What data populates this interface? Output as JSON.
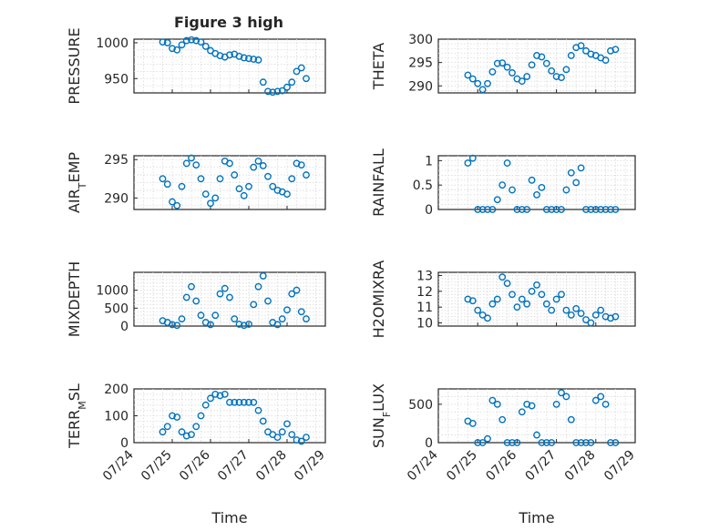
{
  "figure": {
    "title": "Figure 3 high"
  },
  "chart_data": [
    {
      "type": "scatter",
      "ylabel": "PRESSURE",
      "xlabel": "",
      "grid": true,
      "xlim": [
        "07/24",
        "07/29"
      ],
      "ylim": [
        930,
        1005
      ],
      "yticks": [
        950,
        1000
      ],
      "x": [
        "07/24 18:00",
        "07/24 21:00",
        "07/25 00:00",
        "07/25 03:00",
        "07/25 06:00",
        "07/25 09:00",
        "07/25 12:00",
        "07/25 15:00",
        "07/25 18:00",
        "07/25 21:00",
        "07/26 00:00",
        "07/26 03:00",
        "07/26 06:00",
        "07/26 09:00",
        "07/26 12:00",
        "07/26 15:00",
        "07/26 18:00",
        "07/26 21:00",
        "07/27 00:00",
        "07/27 03:00",
        "07/27 06:00",
        "07/27 09:00",
        "07/27 12:00",
        "07/27 15:00",
        "07/27 18:00",
        "07/27 21:00",
        "07/28 00:00",
        "07/28 03:00",
        "07/28 06:00",
        "07/28 09:00",
        "07/28 12:00"
      ],
      "y": [
        1001,
        1000,
        992,
        990,
        997,
        1003,
        1004,
        1003,
        1001,
        995,
        989,
        985,
        982,
        980,
        983,
        984,
        981,
        979,
        978,
        977,
        976,
        945,
        932,
        931,
        932,
        933,
        938,
        945,
        960,
        965,
        950
      ]
    },
    {
      "type": "scatter",
      "ylabel": "THETA",
      "xlabel": "",
      "grid": true,
      "xlim": [
        "07/24",
        "07/29"
      ],
      "ylim": [
        288.5,
        300
      ],
      "yticks": [
        290,
        295,
        300
      ],
      "x": [
        "07/24 18:00",
        "07/24 21:00",
        "07/25 00:00",
        "07/25 03:00",
        "07/25 06:00",
        "07/25 09:00",
        "07/25 12:00",
        "07/25 15:00",
        "07/25 18:00",
        "07/25 21:00",
        "07/26 00:00",
        "07/26 03:00",
        "07/26 06:00",
        "07/26 09:00",
        "07/26 12:00",
        "07/26 15:00",
        "07/26 18:00",
        "07/26 21:00",
        "07/27 00:00",
        "07/27 03:00",
        "07/27 06:00",
        "07/27 09:00",
        "07/27 12:00",
        "07/27 15:00",
        "07/27 18:00",
        "07/27 21:00",
        "07/28 00:00",
        "07/28 03:00",
        "07/28 06:00",
        "07/28 09:00",
        "07/28 12:00"
      ],
      "y": [
        292.3,
        291.5,
        290.5,
        289.2,
        290.5,
        293,
        294.8,
        294.9,
        294,
        292.8,
        291.5,
        291,
        292,
        294.5,
        296.5,
        296.2,
        294.8,
        293.2,
        292,
        291.8,
        293.5,
        296.5,
        298.2,
        298.6,
        297.5,
        296.8,
        296.5,
        296,
        295.5,
        297.5,
        297.8
      ]
    },
    {
      "type": "scatter",
      "ylabel": "AIR_TEMP",
      "xlabel": "",
      "grid": true,
      "xlim": [
        "07/24",
        "07/29"
      ],
      "ylim": [
        288.5,
        295.5
      ],
      "yticks": [
        290,
        295
      ],
      "x": [
        "07/24 18:00",
        "07/24 21:00",
        "07/25 00:00",
        "07/25 03:00",
        "07/25 06:00",
        "07/25 09:00",
        "07/25 12:00",
        "07/25 15:00",
        "07/25 18:00",
        "07/25 21:00",
        "07/26 00:00",
        "07/26 03:00",
        "07/26 06:00",
        "07/26 09:00",
        "07/26 12:00",
        "07/26 15:00",
        "07/26 18:00",
        "07/26 21:00",
        "07/27 00:00",
        "07/27 03:00",
        "07/27 06:00",
        "07/27 09:00",
        "07/27 12:00",
        "07/27 15:00",
        "07/27 18:00",
        "07/27 21:00",
        "07/28 00:00",
        "07/28 03:00",
        "07/28 06:00",
        "07/28 09:00",
        "07/28 12:00"
      ],
      "y": [
        292.5,
        291.8,
        289.5,
        289,
        291.5,
        294.5,
        295.2,
        294.3,
        292.5,
        290.5,
        289.3,
        290,
        292.5,
        294.8,
        294.5,
        293,
        291.2,
        290.3,
        291.5,
        294,
        294.8,
        294.2,
        292.8,
        291.5,
        291,
        290.8,
        290.5,
        292.5,
        294.5,
        294.3,
        293
      ]
    },
    {
      "type": "scatter",
      "ylabel": "RAINFALL",
      "xlabel": "",
      "grid": true,
      "xlim": [
        "07/24",
        "07/29"
      ],
      "ylim": [
        0,
        1.1
      ],
      "yticks": [
        0,
        0.5,
        1
      ],
      "x": [
        "07/24 18:00",
        "07/24 21:00",
        "07/25 00:00",
        "07/25 03:00",
        "07/25 06:00",
        "07/25 09:00",
        "07/25 12:00",
        "07/25 15:00",
        "07/25 18:00",
        "07/25 21:00",
        "07/26 00:00",
        "07/26 03:00",
        "07/26 06:00",
        "07/26 09:00",
        "07/26 12:00",
        "07/26 15:00",
        "07/26 18:00",
        "07/26 21:00",
        "07/27 00:00",
        "07/27 03:00",
        "07/27 06:00",
        "07/27 09:00",
        "07/27 12:00",
        "07/27 15:00",
        "07/27 18:00",
        "07/27 21:00",
        "07/28 00:00",
        "07/28 03:00",
        "07/28 06:00",
        "07/28 09:00",
        "07/28 12:00"
      ],
      "y": [
        0.95,
        1.05,
        0,
        0,
        0,
        0,
        0.2,
        0.5,
        0.95,
        0.4,
        0,
        0,
        0,
        0.6,
        0.3,
        0.45,
        0,
        0,
        0,
        0,
        0.4,
        0.75,
        0.55,
        0.85,
        0,
        0,
        0,
        0,
        0,
        0,
        0
      ]
    },
    {
      "type": "scatter",
      "ylabel": "MIXDEPTH",
      "xlabel": "",
      "grid": true,
      "xlim": [
        "07/24",
        "07/29"
      ],
      "ylim": [
        0,
        1500
      ],
      "yticks": [
        0,
        500,
        1000
      ],
      "x": [
        "07/24 18:00",
        "07/24 21:00",
        "07/25 00:00",
        "07/25 03:00",
        "07/25 06:00",
        "07/25 09:00",
        "07/25 12:00",
        "07/25 15:00",
        "07/25 18:00",
        "07/25 21:00",
        "07/26 00:00",
        "07/26 03:00",
        "07/26 06:00",
        "07/26 09:00",
        "07/26 12:00",
        "07/26 15:00",
        "07/26 18:00",
        "07/26 21:00",
        "07/27 00:00",
        "07/27 03:00",
        "07/27 06:00",
        "07/27 09:00",
        "07/27 12:00",
        "07/27 15:00",
        "07/27 18:00",
        "07/27 21:00",
        "07/28 00:00",
        "07/28 03:00",
        "07/28 06:00",
        "07/28 09:00",
        "07/28 12:00"
      ],
      "y": [
        150,
        100,
        40,
        20,
        200,
        800,
        1100,
        700,
        300,
        100,
        40,
        300,
        900,
        1050,
        800,
        200,
        50,
        20,
        50,
        600,
        1100,
        1400,
        700,
        100,
        40,
        200,
        450,
        900,
        1000,
        400,
        200
      ]
    },
    {
      "type": "scatter",
      "ylabel": "H2OMIXRA",
      "xlabel": "",
      "grid": true,
      "xlim": [
        "07/24",
        "07/29"
      ],
      "ylim": [
        9.8,
        13.2
      ],
      "yticks": [
        10,
        11,
        12,
        13
      ],
      "x": [
        "07/24 18:00",
        "07/24 21:00",
        "07/25 00:00",
        "07/25 03:00",
        "07/25 06:00",
        "07/25 09:00",
        "07/25 12:00",
        "07/25 15:00",
        "07/25 18:00",
        "07/25 21:00",
        "07/26 00:00",
        "07/26 03:00",
        "07/26 06:00",
        "07/26 09:00",
        "07/26 12:00",
        "07/26 15:00",
        "07/26 18:00",
        "07/26 21:00",
        "07/27 00:00",
        "07/27 03:00",
        "07/27 06:00",
        "07/27 09:00",
        "07/27 12:00",
        "07/27 15:00",
        "07/27 18:00",
        "07/27 21:00",
        "07/28 00:00",
        "07/28 03:00",
        "07/28 06:00",
        "07/28 09:00",
        "07/28 12:00"
      ],
      "y": [
        11.5,
        11.4,
        10.8,
        10.5,
        10.3,
        11.2,
        11.5,
        12.9,
        12.5,
        11.8,
        11,
        11.5,
        11.2,
        12,
        12.4,
        11.8,
        11.2,
        10.8,
        11.5,
        11.8,
        10.8,
        10.5,
        10.9,
        10.6,
        10.2,
        10,
        10.5,
        10.8,
        10.4,
        10.3,
        10.4
      ]
    },
    {
      "type": "scatter",
      "ylabel": "TERR_MSL",
      "xlabel": "Time",
      "grid": true,
      "xlim": [
        "07/24",
        "07/29"
      ],
      "ylim": [
        0,
        200
      ],
      "yticks": [
        0,
        100,
        200
      ],
      "xticks": [
        "07/24",
        "07/25",
        "07/26",
        "07/27",
        "07/28",
        "07/29"
      ],
      "x": [
        "07/24 18:00",
        "07/24 21:00",
        "07/25 00:00",
        "07/25 03:00",
        "07/25 06:00",
        "07/25 09:00",
        "07/25 12:00",
        "07/25 15:00",
        "07/25 18:00",
        "07/25 21:00",
        "07/26 00:00",
        "07/26 03:00",
        "07/26 06:00",
        "07/26 09:00",
        "07/26 12:00",
        "07/26 15:00",
        "07/26 18:00",
        "07/26 21:00",
        "07/27 00:00",
        "07/27 03:00",
        "07/27 06:00",
        "07/27 09:00",
        "07/27 12:00",
        "07/27 15:00",
        "07/27 18:00",
        "07/27 21:00",
        "07/28 00:00",
        "07/28 03:00",
        "07/28 06:00",
        "07/28 09:00",
        "07/28 12:00"
      ],
      "y": [
        40,
        60,
        100,
        95,
        40,
        25,
        30,
        60,
        100,
        140,
        165,
        180,
        175,
        180,
        150,
        150,
        150,
        150,
        150,
        150,
        120,
        80,
        40,
        30,
        20,
        40,
        70,
        30,
        10,
        5,
        20
      ]
    },
    {
      "type": "scatter",
      "ylabel": "SUN_FLUX",
      "xlabel": "Time",
      "grid": true,
      "xlim": [
        "07/24",
        "07/29"
      ],
      "ylim": [
        0,
        700
      ],
      "yticks": [
        0,
        500
      ],
      "xticks": [
        "07/24",
        "07/25",
        "07/26",
        "07/27",
        "07/28",
        "07/29"
      ],
      "x": [
        "07/24 18:00",
        "07/24 21:00",
        "07/25 00:00",
        "07/25 03:00",
        "07/25 06:00",
        "07/25 09:00",
        "07/25 12:00",
        "07/25 15:00",
        "07/25 18:00",
        "07/25 21:00",
        "07/26 00:00",
        "07/26 03:00",
        "07/26 06:00",
        "07/26 09:00",
        "07/26 12:00",
        "07/26 15:00",
        "07/26 18:00",
        "07/26 21:00",
        "07/27 00:00",
        "07/27 03:00",
        "07/27 06:00",
        "07/27 09:00",
        "07/27 12:00",
        "07/27 15:00",
        "07/27 18:00",
        "07/27 21:00",
        "07/28 00:00",
        "07/28 03:00",
        "07/28 06:00",
        "07/28 09:00",
        "07/28 12:00"
      ],
      "y": [
        280,
        250,
        0,
        0,
        50,
        550,
        500,
        300,
        0,
        0,
        0,
        400,
        500,
        480,
        100,
        0,
        0,
        0,
        500,
        650,
        600,
        300,
        0,
        0,
        0,
        0,
        550,
        600,
        500,
        0,
        0
      ]
    }
  ]
}
